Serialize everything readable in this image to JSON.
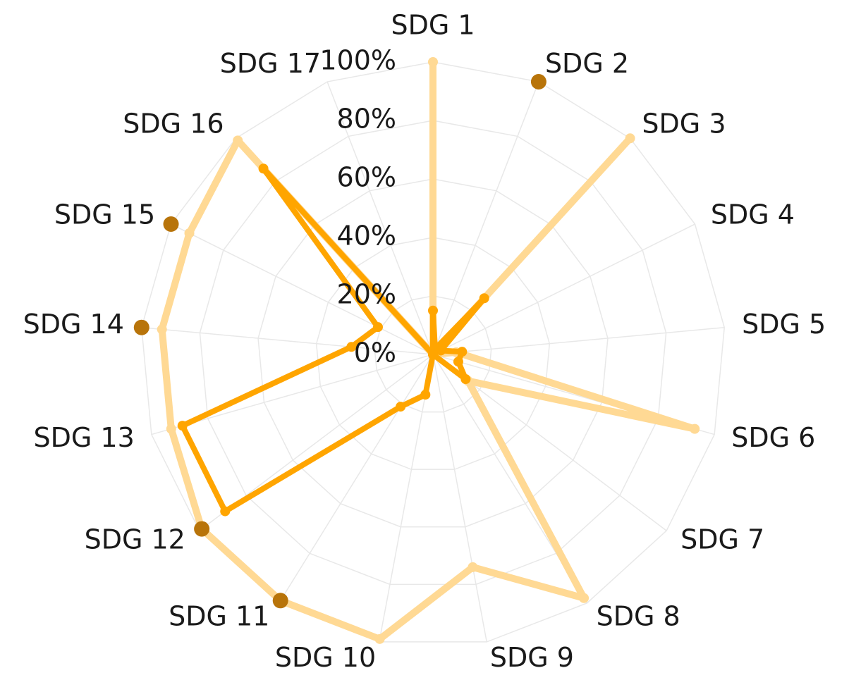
{
  "chart_data": {
    "type": "radar",
    "categories": [
      "SDG 1",
      "SDG 2",
      "SDG 3",
      "SDG 4",
      "SDG 5",
      "SDG 6",
      "SDG 7",
      "SDG 8",
      "SDG 9",
      "SDG 10",
      "SDG 11",
      "SDG 12",
      "SDG 13",
      "SDG 14",
      "SDG 15",
      "SDG 16",
      "SDG 17"
    ],
    "series": [
      {
        "color": "#ffd994",
        "line": true,
        "values": [
          100,
          0,
          100,
          0,
          8,
          93,
          15,
          98,
          74,
          99,
          99,
          99,
          93,
          93,
          93,
          99,
          0
        ]
      },
      {
        "color": "#ffa500",
        "line": true,
        "values": [
          15,
          2,
          26,
          3,
          10,
          9,
          14,
          0,
          0,
          14,
          21,
          89,
          89,
          28,
          21,
          86,
          0
        ]
      },
      {
        "color": "#b8740a",
        "line": false,
        "values": [
          null,
          100,
          null,
          null,
          null,
          null,
          null,
          null,
          null,
          null,
          99,
          99,
          null,
          100,
          100,
          null,
          null
        ]
      }
    ],
    "ylim": [
      0,
      100
    ],
    "yticks": [
      {
        "value": 0,
        "label": "0%"
      },
      {
        "value": 20,
        "label": "20%"
      },
      {
        "value": 40,
        "label": "40%"
      },
      {
        "value": 60,
        "label": "60%"
      },
      {
        "value": 80,
        "label": "80%"
      },
      {
        "value": 100,
        "label": "100%"
      }
    ],
    "grid": true
  }
}
